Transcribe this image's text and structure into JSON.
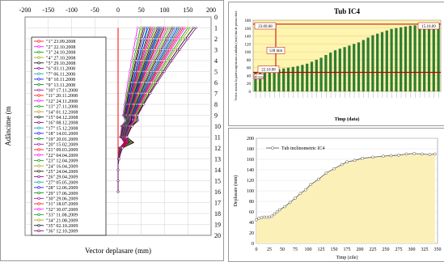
{
  "chart_data": [
    {
      "type": "line",
      "xlabel": "Vector deplasare (mm)",
      "ylabel": "Adâncime (m",
      "xlim": [
        -200,
        200
      ],
      "ylim": [
        20,
        0
      ],
      "x_ticks": [
        "-200",
        "-150",
        "-100",
        "-50",
        "0",
        "50",
        "100",
        "150",
        "200"
      ],
      "y_ticks": [
        "0",
        "1",
        "2",
        "3",
        "4",
        "5",
        "6",
        "7",
        "8",
        "9",
        "10",
        "11",
        "12",
        "13",
        "14",
        "15",
        "16",
        "17",
        "18",
        "19",
        "20"
      ],
      "depths": [
        1,
        1.5,
        2,
        2.5,
        3,
        3.5,
        4,
        4.5,
        5,
        5.5,
        6,
        6.5,
        7,
        7.5,
        8,
        8.5,
        9,
        9.5,
        10,
        10.5,
        11,
        11.5,
        12,
        12.5,
        13,
        13.5,
        14,
        14.5,
        15,
        15.5,
        16
      ],
      "legend": [
        "\"1\" 23.09.2008",
        "\"2\" 22.10.2008",
        "\"3\" 24.10.2008",
        "\"4\" 27.10.2008",
        "\"5\" 29.10.2008",
        "\"6\" 03.11.2008",
        "\"7\" 06.11.2008",
        "\"8\" 10.11.2008",
        "\"9\" 13.11.2008",
        "\"10\" 17.11.2008",
        "\"11\" 20.11.2008",
        "\"12\" 24.11.2008",
        "\"13\" 27.11.2008",
        "\"14\" 01.12.2008",
        "\"15\" 04.12.2008",
        "\"16\" 08.12.2008",
        "\"17\" 15.12.2008",
        "\"18\" 14.01.2009",
        "\"19\" 20.01.2009",
        "\"20\" 15.02.2009",
        "\"21\" 09.03.2009",
        "\"22\" 04.04.2009",
        "\"23\" 12.04.2009",
        "\"24\" 16.04.2009",
        "\"25\" 24.04.2009",
        "\"26\" 29.04.2009",
        "\"27\" 05.05.2009",
        "\"28\" 12.06.2009",
        "\"29\" 17.06.2009",
        "\"30\" 29.06.2009",
        "\"31\" 18.07.2009",
        "\"32\" 30.07.2009",
        "\"33\" 11.08.2009",
        "\"34\" 21.08.2009",
        "\"35\" 02.10.2009",
        "\"36\" 12.10.2009"
      ],
      "colors": [
        "#ff0000",
        "#ff00ff",
        "#00a000",
        "#a0a000",
        "#000000",
        "#800080",
        "#00a0a0",
        "#0000ff",
        "#008000",
        "#a000a0"
      ],
      "top_values": [
        0,
        42,
        48,
        52,
        55,
        58,
        62,
        64,
        68,
        70,
        73,
        76,
        79,
        82,
        85,
        88,
        90,
        92,
        95,
        98,
        100,
        104,
        108,
        112,
        116,
        120,
        124,
        128,
        132,
        136,
        140,
        144,
        150,
        155,
        162,
        168
      ]
    },
    {
      "type": "bar",
      "title": "Tub IC4",
      "ylabel": "Vector maxim la partea superioara a tubului (mm) fata de prima citire",
      "xlabel": "Timp (data)",
      "ylim": [
        0,
        180
      ],
      "y_ticks": [
        "0",
        "20",
        "40",
        "60",
        "80",
        "100",
        "120",
        "140",
        "160",
        "180"
      ],
      "annotations": [
        "23.09.08",
        "15.10.09",
        "22.10.08",
        "128 mm",
        "48 mm"
      ],
      "values": [
        48,
        50,
        51,
        52,
        54,
        56,
        58,
        60,
        62,
        64,
        67,
        70,
        75,
        80,
        85,
        92,
        98,
        104,
        108,
        112,
        116,
        120,
        124,
        130,
        136,
        142,
        146,
        150,
        154,
        158,
        160,
        162,
        164,
        166,
        167,
        168,
        169,
        170,
        171,
        172
      ],
      "color": "#2e7d32",
      "reference_line": 48
    },
    {
      "type": "area",
      "xlabel": "Timp (zile)",
      "ylabel": "Deplasare (mm)",
      "xlim": [
        0,
        350
      ],
      "ylim": [
        0,
        200
      ],
      "x_ticks": [
        "0",
        "25",
        "50",
        "75",
        "100",
        "125",
        "150",
        "175",
        "200",
        "225",
        "250",
        "275",
        "300",
        "325",
        "350"
      ],
      "y_ticks": [
        "0",
        "20",
        "40",
        "60",
        "80",
        "100",
        "120",
        "140",
        "160",
        "180",
        "200"
      ],
      "legend": [
        "Tub inclinometric IC4"
      ],
      "x": [
        0,
        5,
        10,
        15,
        20,
        25,
        30,
        35,
        40,
        45,
        55,
        65,
        75,
        85,
        95,
        105,
        120,
        135,
        150,
        165,
        175,
        190,
        205,
        225,
        245,
        260,
        275,
        290,
        305,
        320,
        335,
        345
      ],
      "y": [
        45,
        48,
        49,
        50,
        50,
        50,
        52,
        56,
        60,
        64,
        70,
        78,
        86,
        95,
        102,
        112,
        122,
        134,
        142,
        150,
        155,
        158,
        162,
        164,
        166,
        167,
        168,
        170,
        171,
        170,
        169,
        170
      ],
      "fill": "#fbf0b8"
    }
  ]
}
